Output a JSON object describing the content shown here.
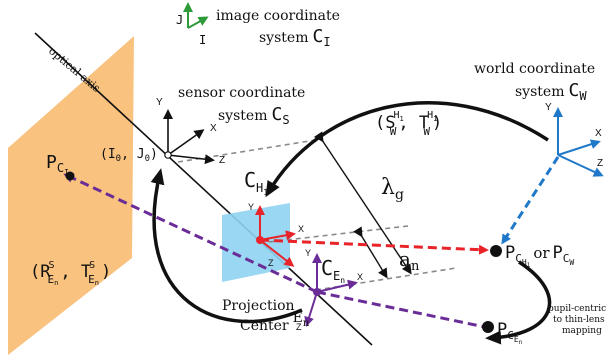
{
  "colors": {
    "image_plane": "#F9C27F",
    "lens": "#8FD3F2",
    "green_axes": "#2E9B3A",
    "blue_axes": "#1F78C8",
    "red_axes": "#E8232A",
    "purple_axes": "#6A2C96",
    "black": "#111111",
    "gray_dashed": "#8A8A8A"
  },
  "labels": {
    "image_cs_line1": "image coordinate",
    "image_cs_line2": "system",
    "image_cs_symbol": "C",
    "image_cs_sub": "I",
    "optical_axis": "optical axis",
    "sensor_cs_line1": "sensor coordinate",
    "sensor_cs_line2": "system",
    "sensor_cs_symbol": "C",
    "sensor_cs_sub": "S",
    "world_cs_line1": "world coordinate",
    "world_cs_line2": "system",
    "world_cs_symbol": "C",
    "world_cs_sub": "W",
    "principal_point": "(I",
    "principal_point_sub0": "0",
    "principal_point_mid": ", J",
    "principal_point_sub1": "0",
    "principal_point_end": ")",
    "transform_world": "(S",
    "transform_world_sup_s": "H",
    "transform_world_sup_s_sub": "1",
    "transform_world_sub_s": "W",
    "transform_world_mid": ", T",
    "transform_world_sup_t": "H",
    "transform_world_sup_t_sub": "1",
    "transform_world_sub_t": "W",
    "transform_world_end": ")",
    "lambda": "λ",
    "lambda_sub": "g",
    "a": "a",
    "a_sub": "n",
    "pci": "P",
    "pci_sub": "C",
    "pci_subsub": "I",
    "ch1": "C",
    "ch1_sub": "H",
    "ch1_subsub": "1",
    "cen": "C",
    "cen_sub": "E",
    "cen_subsub": "n",
    "pch1": "P",
    "pch1_sub": "C",
    "pch1_subsub": "H",
    "pch1_subsubsub": "1",
    "or": "or",
    "pcw": "P",
    "pcw_sub": "C",
    "pcw_subsub": "W",
    "transform_sensor": "(R",
    "transform_sensor_sup_r": "S",
    "transform_sensor_sub_r": "E",
    "transform_sensor_sub_r_sub": "n",
    "transform_sensor_mid": ", T",
    "transform_sensor_sup_t": "S",
    "transform_sensor_sub_t": "E",
    "transform_sensor_sub_t_sub": "n",
    "transform_sensor_end": ")",
    "projection_line1": "Projection",
    "projection_line2": "Center",
    "projection_sym": "E",
    "projection_sub": "n",
    "pcen": "P",
    "pcen_sub": "C",
    "pcen_subsub": "E",
    "pcen_subsubsub": "n",
    "mapping_line1": "pupil-centric",
    "mapping_line2": "to thin-lens",
    "mapping_line3": "mapping",
    "axis_x": "X",
    "axis_y": "Y",
    "axis_z": "Z",
    "axis_i": "I",
    "axis_j": "J"
  }
}
